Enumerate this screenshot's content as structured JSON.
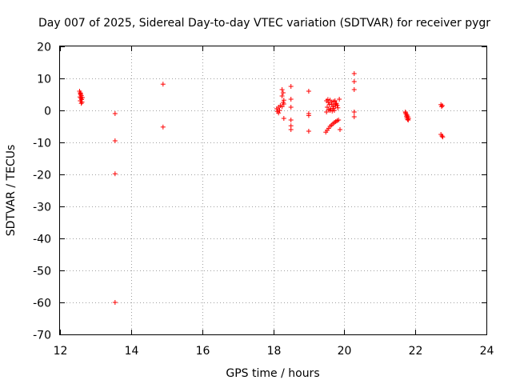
{
  "chart_data": {
    "type": "scatter",
    "title": "Day 007 of 2025, Sidereal Day-to-day VTEC variation (SDTVAR) for receiver pygr",
    "xlabel": "GPS time / hours",
    "ylabel": "SDTVAR / TECUs",
    "xlim": [
      12,
      24
    ],
    "ylim": [
      -70,
      20
    ],
    "xticks": [
      12,
      14,
      16,
      18,
      20,
      22,
      24
    ],
    "yticks": [
      -70,
      -60,
      -50,
      -40,
      -30,
      -20,
      -10,
      0,
      10,
      20
    ],
    "grid": true,
    "marker": "+",
    "color": "#ff0000",
    "series": [
      {
        "name": "SDTVAR",
        "points": [
          [
            12.55,
            6.0
          ],
          [
            12.57,
            5.5
          ],
          [
            12.58,
            5.0
          ],
          [
            12.6,
            4.6
          ],
          [
            12.56,
            4.2
          ],
          [
            12.59,
            3.8
          ],
          [
            12.61,
            3.4
          ],
          [
            12.57,
            3.0
          ],
          [
            12.62,
            2.6
          ],
          [
            12.6,
            2.2
          ],
          [
            12.58,
            5.2
          ],
          [
            12.63,
            4.0
          ],
          [
            13.55,
            -1.0
          ],
          [
            13.55,
            -9.5
          ],
          [
            13.55,
            -19.8
          ],
          [
            13.55,
            -60.0
          ],
          [
            14.9,
            8.2
          ],
          [
            14.9,
            -5.2
          ],
          [
            18.1,
            0.5
          ],
          [
            18.12,
            -0.3
          ],
          [
            18.15,
            1.0
          ],
          [
            18.18,
            0.0
          ],
          [
            18.2,
            1.5
          ],
          [
            18.15,
            -0.8
          ],
          [
            18.25,
            6.5
          ],
          [
            18.28,
            5.5
          ],
          [
            18.25,
            4.5
          ],
          [
            18.3,
            3.2
          ],
          [
            18.28,
            2.5
          ],
          [
            18.3,
            2.0
          ],
          [
            18.25,
            1.2
          ],
          [
            18.3,
            -2.5
          ],
          [
            18.5,
            7.5
          ],
          [
            18.5,
            3.5
          ],
          [
            18.5,
            1.0
          ],
          [
            18.5,
            -3.0
          ],
          [
            18.5,
            -4.8
          ],
          [
            18.5,
            -6.0
          ],
          [
            19.0,
            6.0
          ],
          [
            19.0,
            -1.0
          ],
          [
            19.0,
            -1.6
          ],
          [
            19.0,
            -6.5
          ],
          [
            19.48,
            -6.8
          ],
          [
            19.52,
            -6.2
          ],
          [
            19.56,
            -5.6
          ],
          [
            19.6,
            -5.0
          ],
          [
            19.64,
            -4.6
          ],
          [
            19.68,
            -4.2
          ],
          [
            19.72,
            -3.8
          ],
          [
            19.76,
            -3.5
          ],
          [
            19.8,
            -3.2
          ],
          [
            19.84,
            -3.0
          ],
          [
            19.88,
            -6.0
          ],
          [
            19.5,
            3.0
          ],
          [
            19.55,
            2.5
          ],
          [
            19.6,
            3.2
          ],
          [
            19.65,
            2.0
          ],
          [
            19.7,
            2.8
          ],
          [
            19.75,
            1.5
          ],
          [
            19.52,
            1.0
          ],
          [
            19.58,
            1.8
          ],
          [
            19.62,
            0.5
          ],
          [
            19.68,
            1.2
          ],
          [
            19.72,
            0.0
          ],
          [
            19.78,
            2.2
          ],
          [
            19.82,
            0.8
          ],
          [
            19.86,
            3.5
          ],
          [
            19.5,
            -0.5
          ],
          [
            19.56,
            0.2
          ],
          [
            19.66,
            -0.2
          ],
          [
            19.74,
            3.0
          ],
          [
            19.8,
            1.6
          ],
          [
            19.54,
            3.4
          ],
          [
            19.64,
            2.6
          ],
          [
            19.7,
            0.6
          ],
          [
            19.76,
            1.9
          ],
          [
            19.6,
            0.0
          ],
          [
            20.28,
            11.5
          ],
          [
            20.28,
            9.0
          ],
          [
            20.28,
            6.5
          ],
          [
            20.28,
            -0.5
          ],
          [
            20.28,
            -2.0
          ],
          [
            21.72,
            -0.5
          ],
          [
            21.74,
            -1.2
          ],
          [
            21.75,
            -1.8
          ],
          [
            21.76,
            -2.3
          ],
          [
            21.78,
            -2.8
          ],
          [
            21.8,
            -3.0
          ],
          [
            21.73,
            -0.8
          ],
          [
            21.77,
            -1.5
          ],
          [
            21.79,
            -2.0
          ],
          [
            21.81,
            -2.5
          ],
          [
            22.72,
            1.8
          ],
          [
            22.74,
            1.2
          ],
          [
            22.76,
            1.5
          ],
          [
            22.72,
            -7.5
          ],
          [
            22.75,
            -8.0
          ],
          [
            22.77,
            -8.3
          ]
        ]
      }
    ]
  }
}
